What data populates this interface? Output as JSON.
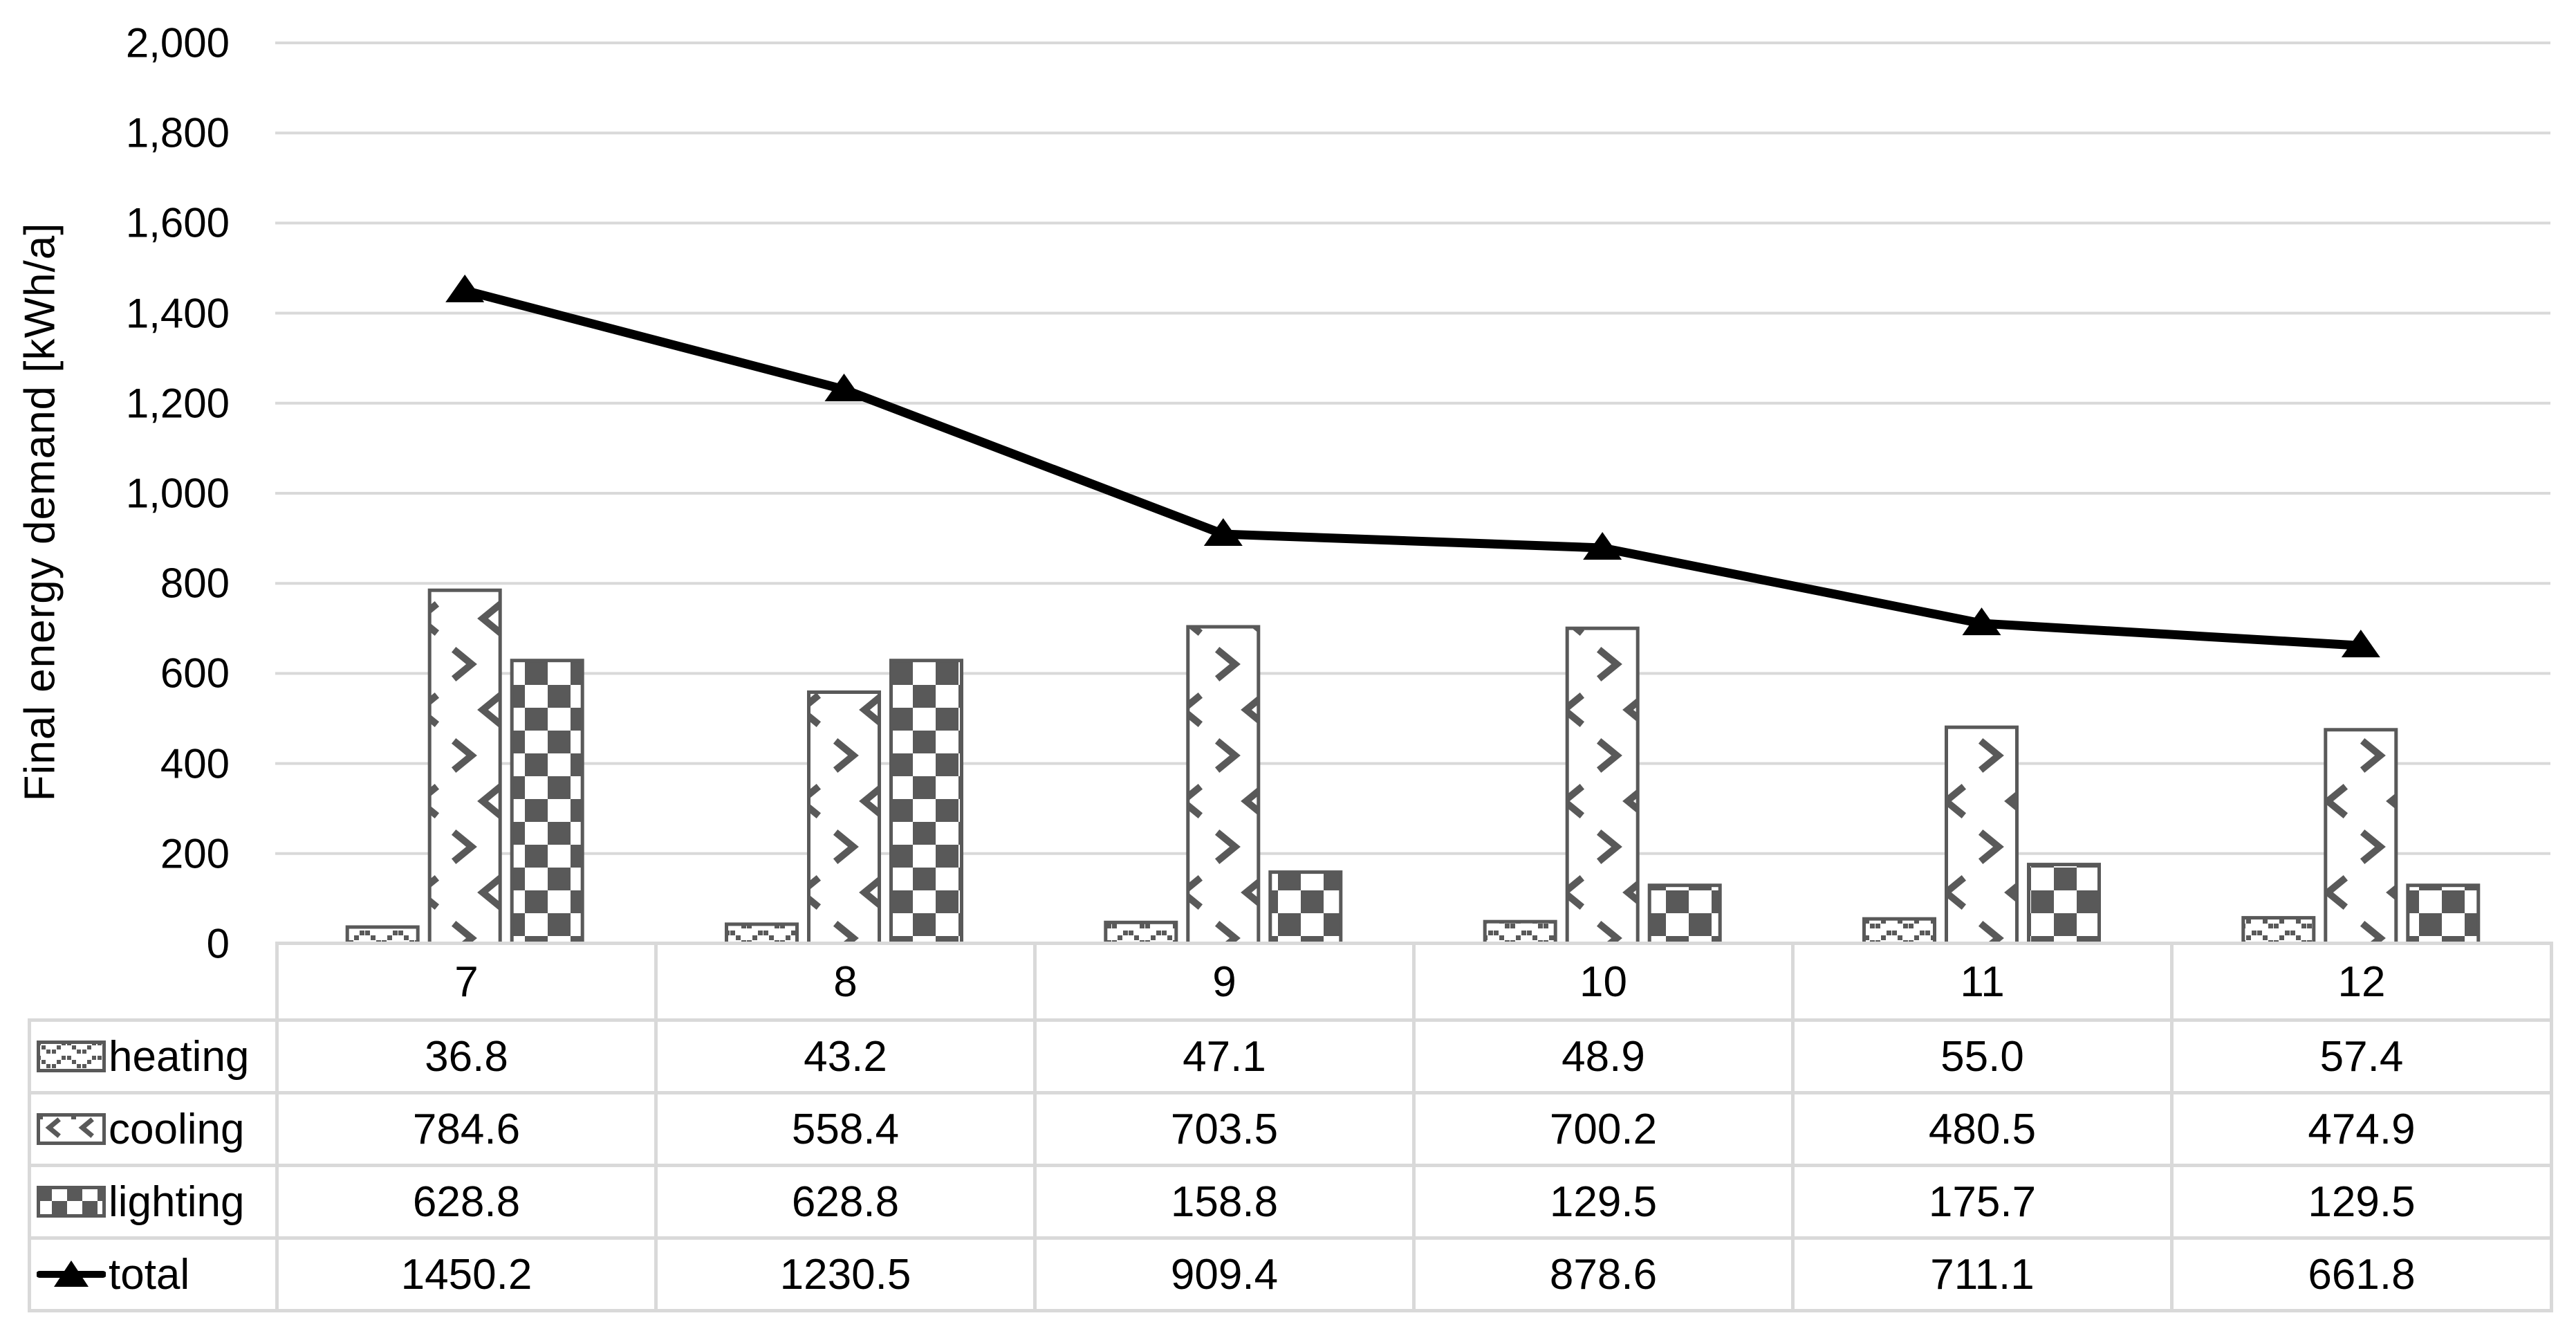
{
  "y_axis": {
    "title": "Final energy demand [kWh/a]",
    "tick_labels": [
      "0",
      "200",
      "400",
      "600",
      "800",
      "1,000",
      "1,200",
      "1,400",
      "1,600",
      "1,800",
      "2,000"
    ]
  },
  "categories": [
    "7",
    "8",
    "9",
    "10",
    "11",
    "12"
  ],
  "table_rows": [
    {
      "key": "heating",
      "label": "heating",
      "values": [
        "36.8",
        "43.2",
        "47.1",
        "48.9",
        "55.0",
        "57.4"
      ]
    },
    {
      "key": "cooling",
      "label": "cooling",
      "values": [
        "784.6",
        "558.4",
        "703.5",
        "700.2",
        "480.5",
        "474.9"
      ]
    },
    {
      "key": "lighting",
      "label": "lighting",
      "values": [
        "628.8",
        "628.8",
        "158.8",
        "129.5",
        "175.7",
        "129.5"
      ]
    },
    {
      "key": "total",
      "label": "total",
      "values": [
        "1450.2",
        "1230.5",
        "909.4",
        "878.6",
        "711.1",
        "661.8"
      ]
    }
  ],
  "chart_data": {
    "type": "bar",
    "categories": [
      7,
      8,
      9,
      10,
      11,
      12
    ],
    "series": [
      {
        "name": "heating",
        "type": "bar",
        "pattern": "shingle-dots",
        "values": [
          36.8,
          43.2,
          47.1,
          48.9,
          55.0,
          57.4
        ]
      },
      {
        "name": "cooling",
        "type": "bar",
        "pattern": "divot",
        "values": [
          784.6,
          558.4,
          703.5,
          700.2,
          480.5,
          474.9
        ]
      },
      {
        "name": "lighting",
        "type": "bar",
        "pattern": "checkerboard",
        "values": [
          628.8,
          628.8,
          158.8,
          129.5,
          175.7,
          129.5
        ]
      },
      {
        "name": "total",
        "type": "line",
        "marker": "triangle-up",
        "values": [
          1450.2,
          1230.5,
          909.4,
          878.6,
          711.1,
          661.8
        ]
      }
    ],
    "title": "",
    "xlabel": "",
    "ylabel": "Final energy demand [kWh/a]",
    "ylim": [
      0,
      2000
    ],
    "ytick_step": 200,
    "grid": true,
    "legend_position": "left-of-data-table-rows"
  },
  "colors": {
    "pattern_fg": "#595959",
    "gridline": "#D9D9D9",
    "line_series": "#000000",
    "text": "#000000",
    "background": "#FFFFFF"
  }
}
